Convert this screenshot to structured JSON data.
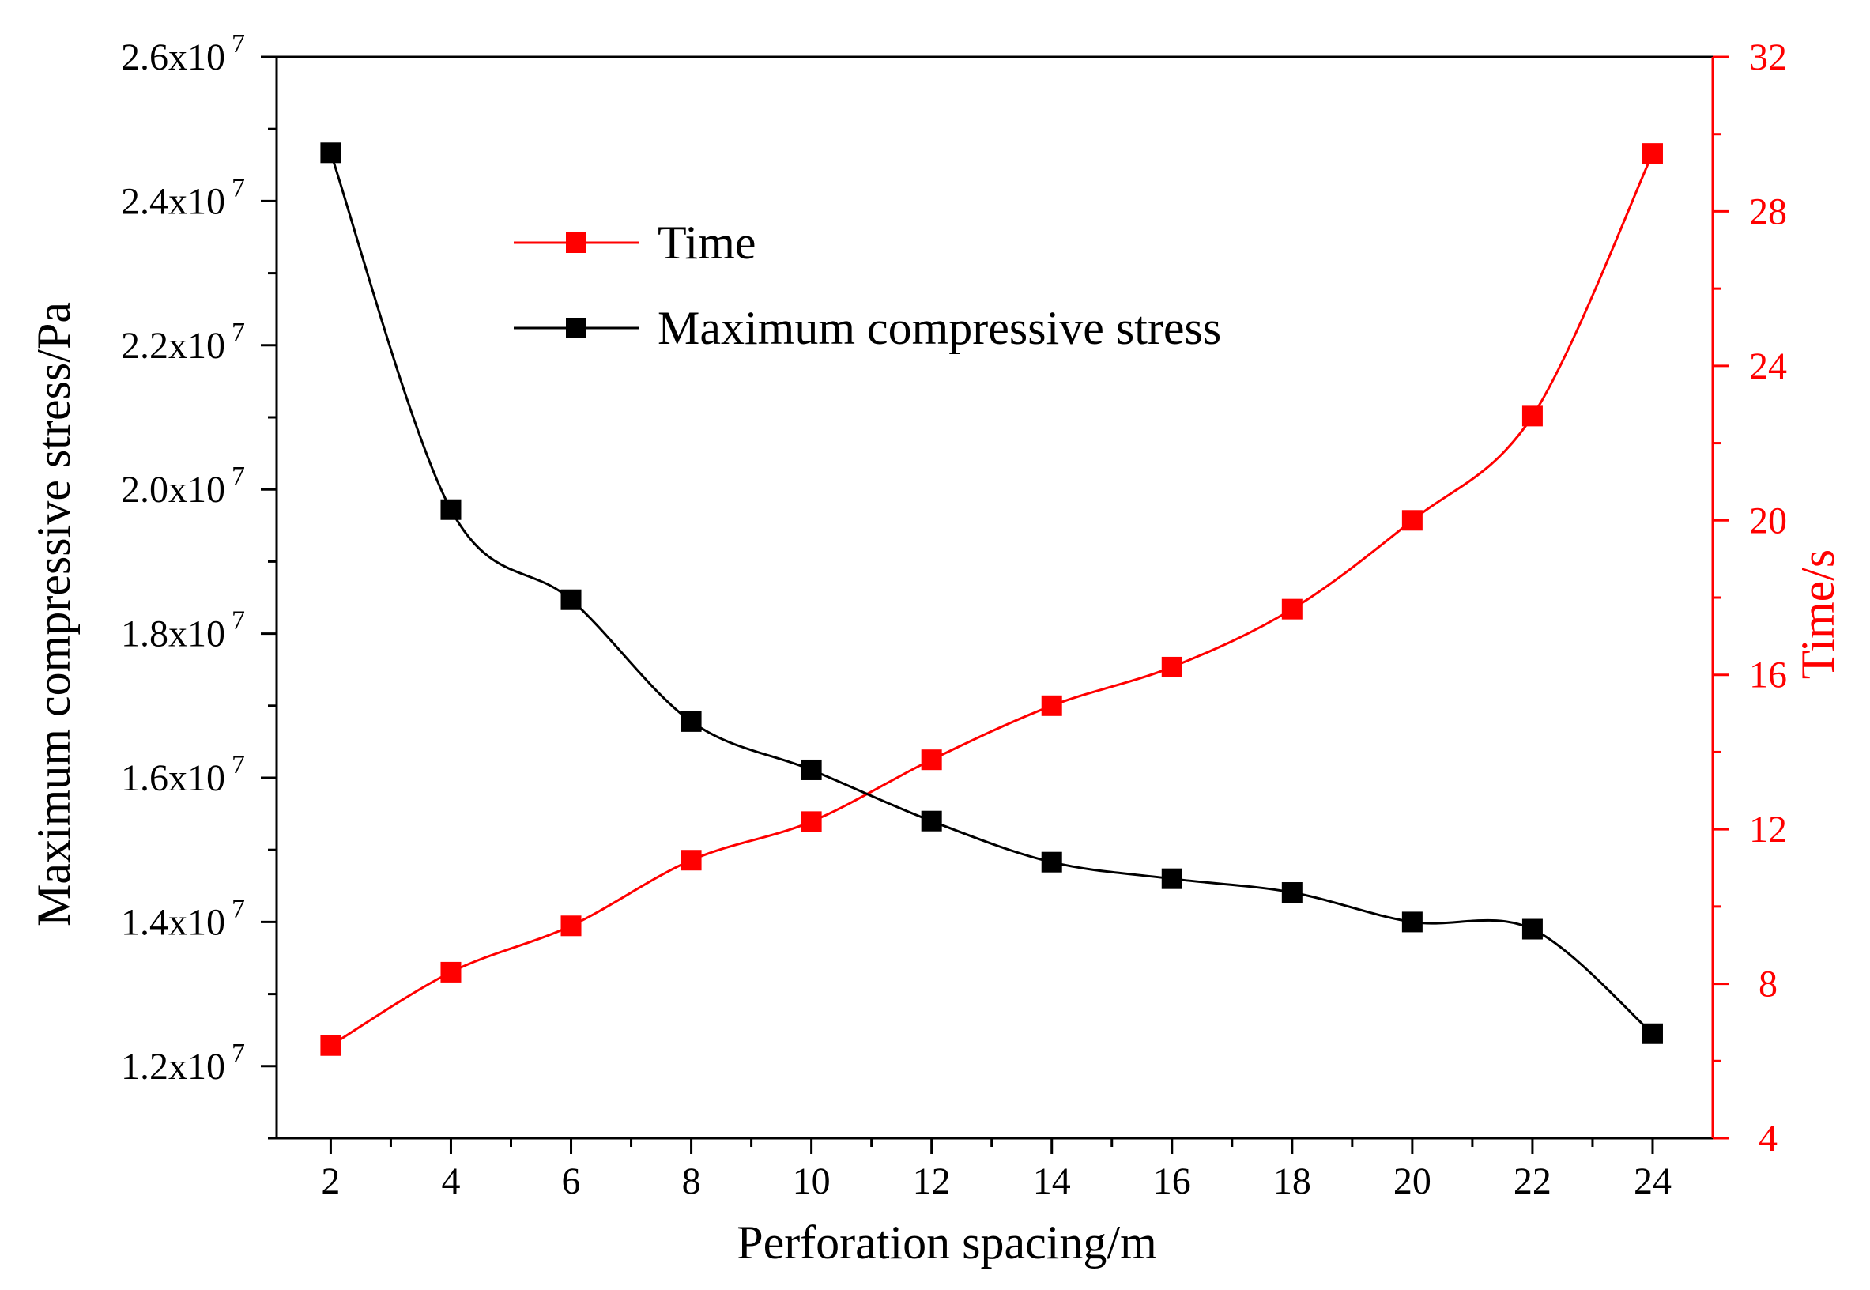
{
  "chart_data": {
    "type": "line",
    "title": "",
    "xlabel": "Perforation spacing/m",
    "ylabel_left": "Maximum compressive stress/Pa",
    "ylabel_right": "Time/s",
    "x": [
      2,
      4,
      6,
      8,
      10,
      12,
      14,
      16,
      18,
      20,
      22,
      24
    ],
    "xlim": [
      1.1,
      25.0
    ],
    "xticks": [
      2,
      4,
      6,
      8,
      10,
      12,
      14,
      16,
      18,
      20,
      22,
      24
    ],
    "ylim_left": [
      11000000,
      26000000
    ],
    "yticks_left": [
      {
        "value": 12000000,
        "mantissa": "1.2x10",
        "exp": "7"
      },
      {
        "value": 14000000,
        "mantissa": "1.4x10",
        "exp": "7"
      },
      {
        "value": 16000000,
        "mantissa": "1.6x10",
        "exp": "7"
      },
      {
        "value": 18000000,
        "mantissa": "1.8x10",
        "exp": "7"
      },
      {
        "value": 20000000,
        "mantissa": "2.0x10",
        "exp": "7"
      },
      {
        "value": 22000000,
        "mantissa": "2.2x10",
        "exp": "7"
      },
      {
        "value": 24000000,
        "mantissa": "2.4x10",
        "exp": "7"
      },
      {
        "value": 26000000,
        "mantissa": "2.6x10",
        "exp": "7"
      }
    ],
    "ylim_right": [
      4,
      32
    ],
    "yticks_right": [
      4,
      8,
      12,
      16,
      20,
      24,
      28,
      32
    ],
    "series": [
      {
        "name": "Time",
        "axis": "right",
        "color": "#ff0000",
        "values": [
          6.4,
          8.3,
          9.5,
          11.2,
          12.2,
          13.8,
          15.2,
          16.2,
          17.7,
          20.0,
          22.7,
          29.5
        ]
      },
      {
        "name": "Maximum compressive stress",
        "axis": "left",
        "color": "#000000",
        "values": [
          24670000,
          19720000,
          18470000,
          16780000,
          16110000,
          15400000,
          14830000,
          14600000,
          14410000,
          14000000,
          13900000,
          12450000
        ]
      }
    ],
    "legend": {
      "position": "upper-left-inside"
    }
  }
}
